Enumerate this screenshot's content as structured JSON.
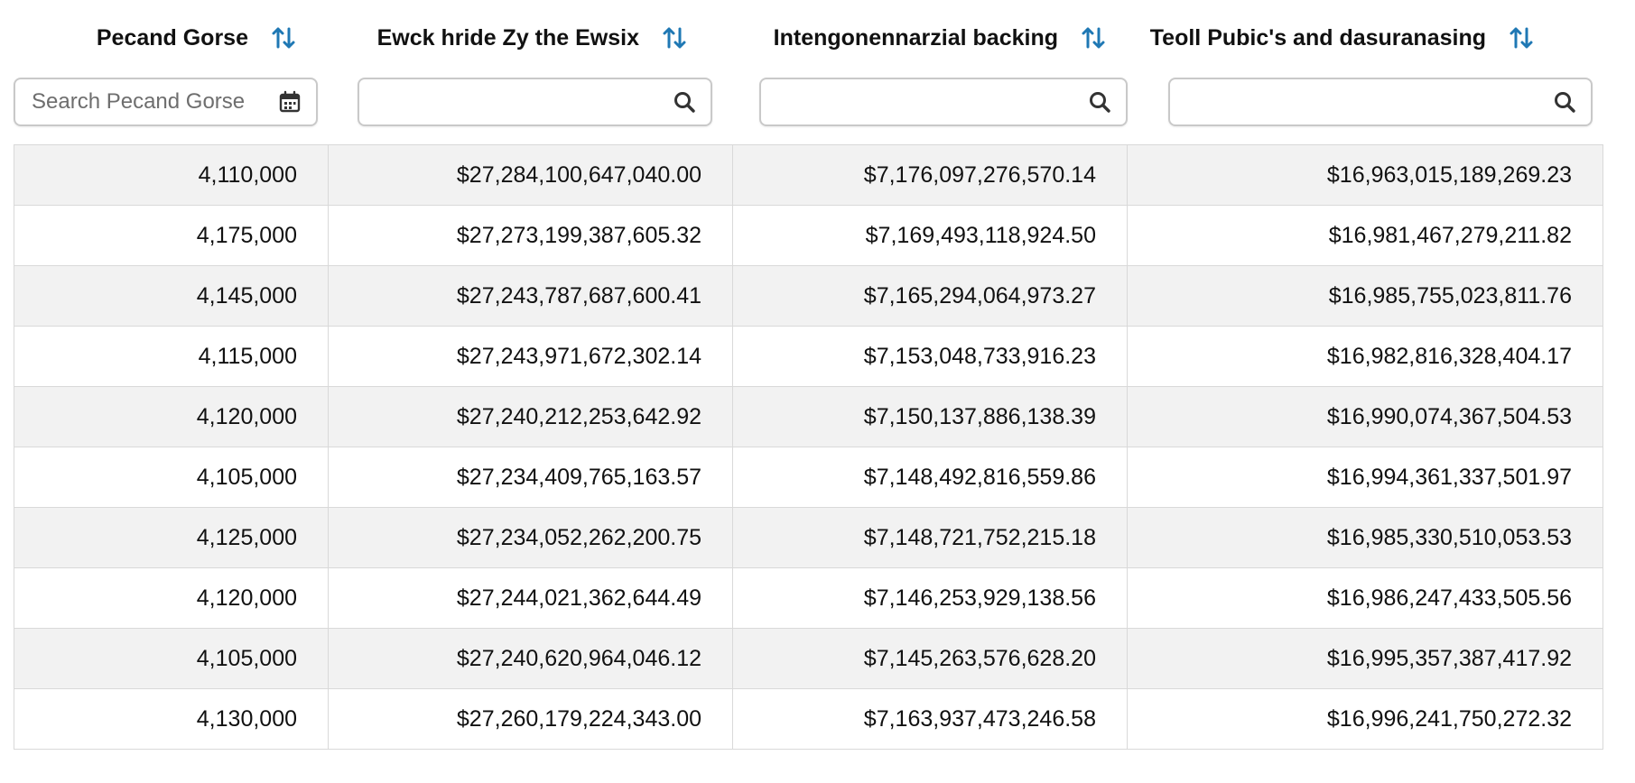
{
  "columns": [
    {
      "header": "Pecand Gorse",
      "filter_placeholder": "Search Pecand Gorse",
      "filter_icon": "calendar-icon",
      "sort_icon": "sort-arrows-icon"
    },
    {
      "header": "Ewck hride Zy the Ewsix",
      "filter_placeholder": "",
      "filter_icon": "search-icon",
      "sort_icon": "sort-arrows-icon"
    },
    {
      "header": "Intengonennarzial backing",
      "filter_placeholder": "",
      "filter_icon": "search-icon",
      "sort_icon": "sort-arrows-icon"
    },
    {
      "header": "Teoll Pubic's and dasuranasing",
      "filter_placeholder": "",
      "filter_icon": "search-icon",
      "sort_icon": "sort-arrows-icon"
    }
  ],
  "rows": [
    [
      "4,110,000",
      "$27,284,100,647,040.00",
      "$7,176,097,276,570.14",
      "$16,963,015,189,269.23"
    ],
    [
      "4,175,000",
      "$27,273,199,387,605.32",
      "$7,169,493,118,924.50",
      "$16,981,467,279,211.82"
    ],
    [
      "4,145,000",
      "$27,243,787,687,600.41",
      "$7,165,294,064,973.27",
      "$16,985,755,023,811.76"
    ],
    [
      "4,115,000",
      "$27,243,971,672,302.14",
      "$7,153,048,733,916.23",
      "$16,982,816,328,404.17"
    ],
    [
      "4,120,000",
      "$27,240,212,253,642.92",
      "$7,150,137,886,138.39",
      "$16,990,074,367,504.53"
    ],
    [
      "4,105,000",
      "$27,234,409,765,163.57",
      "$7,148,492,816,559.86",
      "$16,994,361,337,501.97"
    ],
    [
      "4,125,000",
      "$27,234,052,262,200.75",
      "$7,148,721,752,215.18",
      "$16,985,330,510,053.53"
    ],
    [
      "4,120,000",
      "$27,244,021,362,644.49",
      "$7,146,253,929,138.56",
      "$16,986,247,433,505.56"
    ],
    [
      "4,105,000",
      "$27,240,620,964,046.12",
      "$7,145,263,576,628.20",
      "$16,995,357,387,417.92"
    ],
    [
      "4,130,000",
      "$27,260,179,224,343.00",
      "$7,163,937,473,246.58",
      "$16,996,241,750,272.32"
    ]
  ],
  "colors": {
    "accent": "#1f78b4",
    "row_alt": "#f2f2f2",
    "border": "#d9d9d9"
  }
}
